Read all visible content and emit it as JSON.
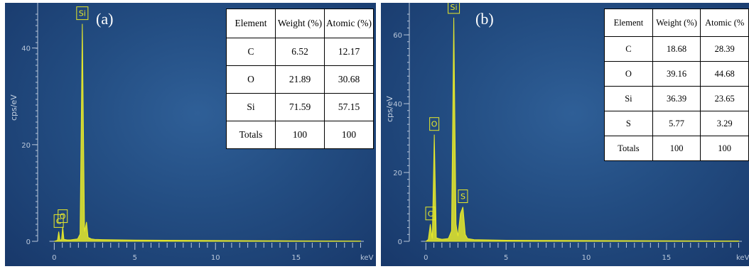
{
  "chart_data": [
    {
      "type": "line",
      "panel_label": "(a)",
      "ylabel": "cps/eV",
      "xlabel": "keV",
      "xlim": [
        -0.5,
        19.2
      ],
      "ylim": [
        0,
        47
      ],
      "x_ticks": [
        "0",
        "5",
        "10",
        "15"
      ],
      "y_ticks": [
        "20",
        "40"
      ],
      "line_color": "#e8ea2a",
      "series": [
        {
          "x": [
            0,
            0.2,
            0.277,
            0.35,
            0.45,
            0.525,
            0.6,
            0.8,
            1.0,
            1.45,
            1.6,
            1.74,
            1.88,
            2.0,
            2.1,
            2.3,
            2.5,
            3,
            5,
            8,
            11,
            15,
            19
          ],
          "y": [
            0,
            0.2,
            2.0,
            0.3,
            0.3,
            3.0,
            0.4,
            0.3,
            0.3,
            0.5,
            1.5,
            45.0,
            2.0,
            4.0,
            0.8,
            0.5,
            0.4,
            0.35,
            0.25,
            0.2,
            0.15,
            0.1,
            0.05
          ]
        }
      ],
      "peaks": [
        {
          "label": "C",
          "x": 0.277
        },
        {
          "label": "O",
          "x": 0.525
        },
        {
          "label": "Si",
          "x": 1.74
        }
      ],
      "table": {
        "headers": [
          "Element",
          "Weight (%)",
          "Atomic (%)"
        ],
        "rows": [
          [
            "C",
            "6.52",
            "12.17"
          ],
          [
            "O",
            "21.89",
            "30.68"
          ],
          [
            "Si",
            "71.59",
            "57.15"
          ],
          [
            "Totals",
            "100",
            "100"
          ]
        ]
      }
    },
    {
      "type": "line",
      "panel_label": "(b)",
      "ylabel": "cps/eV",
      "xlabel": "keV",
      "xlim": [
        -0.5,
        19.7
      ],
      "ylim": [
        0,
        66
      ],
      "x_ticks": [
        "0",
        "5",
        "10",
        "15"
      ],
      "y_ticks": [
        "20",
        "40",
        "60"
      ],
      "line_color": "#e8ea2a",
      "series": [
        {
          "x": [
            0,
            0.15,
            0.277,
            0.4,
            0.525,
            0.65,
            0.8,
            1.0,
            1.4,
            1.6,
            1.74,
            1.88,
            2.0,
            2.15,
            2.31,
            2.46,
            2.6,
            3,
            5,
            8,
            11,
            15,
            19.5
          ],
          "y": [
            0,
            0.5,
            5.0,
            0.8,
            31.0,
            1.0,
            0.8,
            0.6,
            0.8,
            3.0,
            65.0,
            5.0,
            1.5,
            8.0,
            10.0,
            2.0,
            0.8,
            0.5,
            0.3,
            0.25,
            0.2,
            0.15,
            0.1
          ]
        }
      ],
      "peaks": [
        {
          "label": "C",
          "x": 0.277
        },
        {
          "label": "O",
          "x": 0.525
        },
        {
          "label": "Si",
          "x": 1.74
        },
        {
          "label": "S",
          "x": 2.31
        }
      ],
      "table": {
        "headers": [
          "Element",
          "Weight (%)",
          "Atomic (%"
        ],
        "rows": [
          [
            "C",
            "18.68",
            "28.39"
          ],
          [
            "O",
            "39.16",
            "44.68"
          ],
          [
            "Si",
            "36.39",
            "23.65"
          ],
          [
            "S",
            "5.77",
            "3.29"
          ],
          [
            "Totals",
            "100",
            "100"
          ]
        ]
      }
    }
  ]
}
